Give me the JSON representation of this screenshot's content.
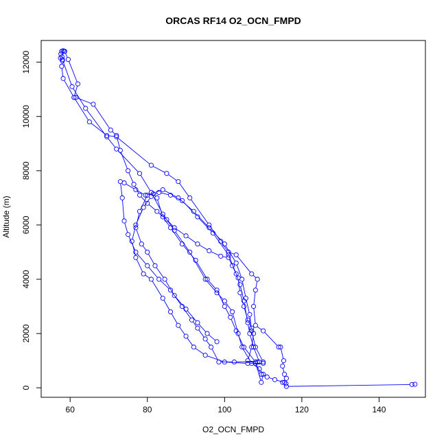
{
  "chart_data": {
    "type": "scatter",
    "title": "ORCAS RF14 O2_OCN_FMPD",
    "xlabel": "O2_OCN_FMPD",
    "ylabel": "Altitude (m)",
    "xlim": [
      52.5,
      152
    ],
    "ylim": [
      -350,
      12800
    ],
    "x_ticks": [
      60,
      80,
      100,
      120,
      140
    ],
    "y_ticks": [
      0,
      2000,
      4000,
      6000,
      8000,
      10000,
      12000
    ],
    "color": "#0000ff",
    "series": [
      {
        "values": [
          [
            58.5,
            12400
          ],
          [
            57.6,
            12300
          ],
          [
            57.5,
            12150
          ],
          [
            58.0,
            12050
          ],
          [
            57.8,
            11850
          ],
          [
            58.2,
            11400
          ],
          [
            61.0,
            10700
          ],
          [
            61.5,
            10700
          ],
          [
            66.0,
            10450
          ],
          [
            70.5,
            9500
          ],
          [
            72.0,
            9300
          ],
          [
            73.0,
            8750
          ],
          [
            75.0,
            8000
          ],
          [
            76.5,
            7500
          ],
          [
            78.0,
            7100
          ],
          [
            80.0,
            6800
          ],
          [
            82.5,
            6500
          ],
          [
            85.0,
            6200
          ],
          [
            87.0,
            5900
          ],
          [
            90.0,
            5600
          ],
          [
            93.0,
            5300
          ],
          [
            96.0,
            5050
          ],
          [
            99.0,
            4850
          ],
          [
            101.0,
            4800
          ],
          [
            102.0,
            4500
          ],
          [
            103.5,
            4050
          ],
          [
            104.0,
            3500
          ],
          [
            105.0,
            3000
          ],
          [
            106.0,
            2500
          ],
          [
            107.0,
            2200
          ],
          [
            107.5,
            2000
          ],
          [
            107.0,
            1500
          ],
          [
            106.0,
            1000
          ],
          [
            108.0,
            900
          ],
          [
            109.5,
            500
          ],
          [
            111.0,
            400
          ],
          [
            113.0,
            300
          ],
          [
            115.5,
            200
          ],
          [
            116.0,
            50
          ],
          [
            148.5,
            120
          ],
          [
            149.3,
            130
          ]
        ]
      },
      {
        "values": [
          [
            115.9,
            150
          ],
          [
            115.0,
            200
          ],
          [
            116.0,
            350
          ],
          [
            115.5,
            500
          ],
          [
            115.0,
            800
          ],
          [
            115.3,
            1000
          ],
          [
            114.5,
            1500
          ],
          [
            114.0,
            1500
          ],
          [
            110.0,
            2100
          ],
          [
            108.0,
            2300
          ],
          [
            107.5,
            3000
          ],
          [
            108.0,
            3600
          ],
          [
            108.5,
            4000
          ],
          [
            107.0,
            4200
          ],
          [
            103.0,
            4900
          ],
          [
            101.0,
            5000
          ],
          [
            99.0,
            5400
          ],
          [
            96.0,
            6000
          ],
          [
            91.0,
            7000
          ],
          [
            88.0,
            7600
          ],
          [
            85.0,
            7900
          ],
          [
            81.0,
            8200
          ],
          [
            72.0,
            9250
          ],
          [
            69.5,
            9300
          ],
          [
            65.0,
            9800
          ],
          [
            61.0,
            10700
          ],
          [
            62.0,
            11200
          ],
          [
            59.5,
            12100
          ],
          [
            58.6,
            12400
          ],
          [
            58.2,
            12420
          ],
          [
            57.8,
            12400
          ]
        ]
      },
      {
        "values": [
          [
            58.2,
            12420
          ],
          [
            57.9,
            12200
          ],
          [
            58.0,
            12100
          ],
          [
            60.5,
            11100
          ],
          [
            64.0,
            10300
          ],
          [
            69.5,
            9250
          ],
          [
            72.0,
            8800
          ],
          [
            78.0,
            7900
          ],
          [
            81.0,
            7200
          ],
          [
            84.0,
            6400
          ],
          [
            87.0,
            5800
          ],
          [
            91.0,
            5000
          ],
          [
            95.0,
            4000
          ],
          [
            98.0,
            3500
          ],
          [
            100.0,
            3200
          ],
          [
            102.0,
            2800
          ],
          [
            103.5,
            2000
          ],
          [
            104.5,
            1500
          ],
          [
            107.0,
            900
          ],
          [
            109.0,
            700
          ],
          [
            110.0,
            500
          ],
          [
            109.5,
            200
          ],
          [
            108.0,
            950
          ],
          [
            105.0,
            1500
          ],
          [
            103.0,
            2100
          ],
          [
            101.5,
            2600
          ],
          [
            100.0,
            3000
          ],
          [
            98.0,
            3600
          ],
          [
            95.5,
            4000
          ],
          [
            92.5,
            4700
          ],
          [
            89.0,
            5300
          ],
          [
            86.0,
            5900
          ],
          [
            84.0,
            6300
          ],
          [
            82.5,
            7000
          ],
          [
            81.5,
            7150
          ],
          [
            79.5,
            7100
          ],
          [
            77.0,
            7300
          ],
          [
            74.0,
            7550
          ],
          [
            73.0,
            7600
          ],
          [
            73.5,
            7000
          ],
          [
            74.0,
            6150
          ],
          [
            75.0,
            5650
          ],
          [
            77.0,
            5000
          ],
          [
            80.0,
            4500
          ],
          [
            83.0,
            4000
          ],
          [
            86.0,
            3600
          ],
          [
            89.0,
            3000
          ],
          [
            91.5,
            2500
          ],
          [
            93.0,
            2200
          ],
          [
            95.0,
            1800
          ],
          [
            96.5,
            1500
          ],
          [
            98.5,
            950
          ],
          [
            102.5,
            950
          ],
          [
            108.5,
            950
          ]
        ]
      },
      {
        "values": [
          [
            109.0,
            950
          ],
          [
            107.5,
            1500
          ],
          [
            106.5,
            2000
          ],
          [
            106.0,
            2400
          ],
          [
            105.0,
            3200
          ],
          [
            104.0,
            3800
          ],
          [
            103.0,
            4200
          ],
          [
            101.0,
            4900
          ],
          [
            97.0,
            5700
          ],
          [
            93.0,
            6300
          ],
          [
            89.0,
            6900
          ],
          [
            86.0,
            7100
          ],
          [
            83.0,
            7200
          ],
          [
            81.0,
            7050
          ],
          [
            79.0,
            6650
          ],
          [
            77.0,
            6000
          ],
          [
            76.0,
            5400
          ],
          [
            77.0,
            4800
          ],
          [
            79.0,
            4200
          ],
          [
            81.0,
            4000
          ],
          [
            84.0,
            3300
          ],
          [
            86.0,
            2800
          ],
          [
            88.0,
            2300
          ],
          [
            90.0,
            1900
          ],
          [
            92.0,
            1500
          ],
          [
            95.0,
            1200
          ],
          [
            100.0,
            950
          ],
          [
            106.0,
            900
          ],
          [
            110.0,
            900
          ]
        ]
      },
      {
        "values": [
          [
            110.0,
            950
          ],
          [
            108.0,
            1500
          ],
          [
            107.0,
            2100
          ],
          [
            106.5,
            2700
          ],
          [
            105.5,
            3300
          ],
          [
            104.5,
            4000
          ],
          [
            103.0,
            4600
          ],
          [
            100.0,
            5300
          ],
          [
            96.0,
            5900
          ],
          [
            92.0,
            6500
          ],
          [
            88.0,
            7000
          ],
          [
            84.0,
            7300
          ],
          [
            80.0,
            7100
          ],
          [
            78.0,
            6500
          ],
          [
            77.0,
            5900
          ],
          [
            78.5,
            5300
          ],
          [
            80.0,
            5000
          ],
          [
            82.0,
            4500
          ],
          [
            84.5,
            4000
          ],
          [
            87.0,
            3400
          ],
          [
            90.0,
            2900
          ],
          [
            93.0,
            2400
          ],
          [
            95.5,
            2000
          ],
          [
            98.0,
            1700
          ]
        ]
      }
    ]
  }
}
